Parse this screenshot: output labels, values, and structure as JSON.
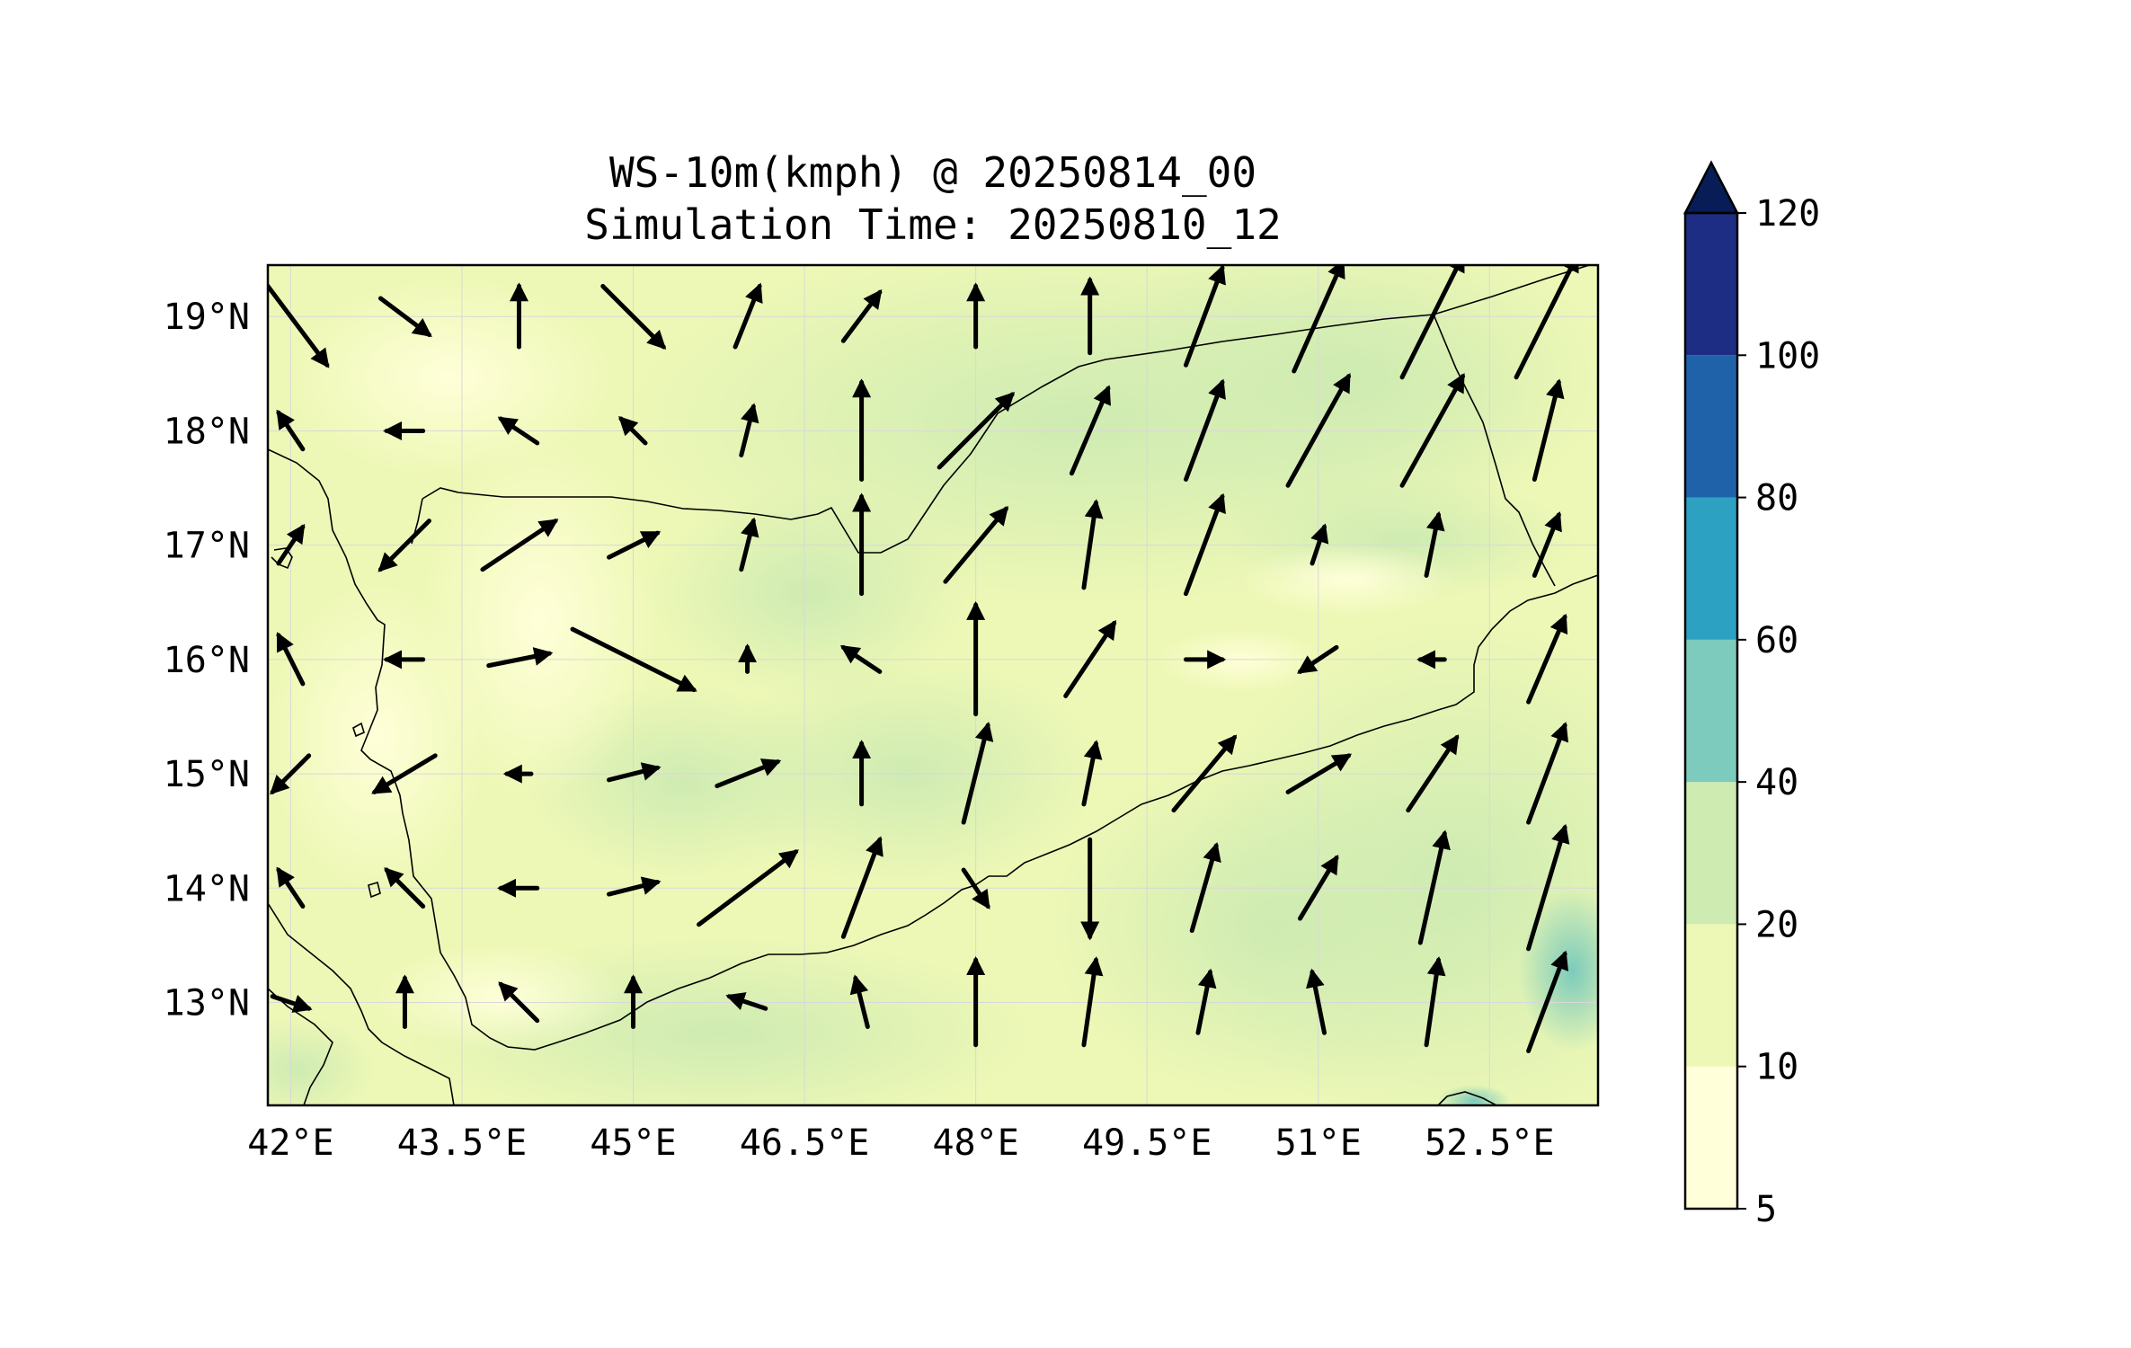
{
  "title": {
    "line1": "WS-10m(kmph) @ 20250814_00",
    "line2": "Simulation Time: 20250810_12"
  },
  "map": {
    "extent_lon": [
      41.8,
      53.45
    ],
    "extent_lat": [
      12.1,
      19.45
    ],
    "x_ticks": [
      {
        "lon": 42.0,
        "label": "42°E"
      },
      {
        "lon": 43.5,
        "label": "43.5°E"
      },
      {
        "lon": 45.0,
        "label": "45°E"
      },
      {
        "lon": 46.5,
        "label": "46.5°E"
      },
      {
        "lon": 48.0,
        "label": "48°E"
      },
      {
        "lon": 49.5,
        "label": "49.5°E"
      },
      {
        "lon": 51.0,
        "label": "51°E"
      },
      {
        "lon": 52.5,
        "label": "52.5°E"
      }
    ],
    "y_ticks": [
      {
        "lat": 19,
        "label": "19°N"
      },
      {
        "lat": 18,
        "label": "18°N"
      },
      {
        "lat": 17,
        "label": "17°N"
      },
      {
        "lat": 16,
        "label": "16°N"
      },
      {
        "lat": 15,
        "label": "15°N"
      },
      {
        "lat": 14,
        "label": "14°N"
      },
      {
        "lat": 13,
        "label": "13°N"
      }
    ],
    "gridlines": true
  },
  "colorbar": {
    "levels": [
      5,
      10,
      20,
      40,
      60,
      80,
      100,
      120
    ],
    "labels": [
      "5",
      "10",
      "20",
      "40",
      "60",
      "80",
      "100",
      "120"
    ],
    "colors": [
      "#ffffd9",
      "#eef8b6",
      "#ceebb2",
      "#7ccbbc",
      "#2ca1c2",
      "#2062a9",
      "#1d2d83"
    ],
    "extend_color": "#081d58",
    "extend": "max"
  },
  "chart_data": {
    "type": "heatmap",
    "variable": "WS-10m(kmph)",
    "valid_time": "20250814_00",
    "simulation_time": "20250810_12",
    "wind_vectors_uv": [
      [
        42.0,
        19.0,
        6,
        -8
      ],
      [
        43.0,
        19.0,
        4,
        -3
      ],
      [
        44.0,
        19.0,
        0,
        5
      ],
      [
        45.0,
        19.0,
        5,
        -5
      ],
      [
        46.0,
        19.0,
        2,
        5
      ],
      [
        47.0,
        19.0,
        3,
        4
      ],
      [
        48.0,
        19.0,
        0,
        5
      ],
      [
        49.0,
        19.0,
        0,
        6
      ],
      [
        50.0,
        19.0,
        3,
        8
      ],
      [
        51.0,
        19.0,
        4,
        9
      ],
      [
        52.0,
        19.0,
        5,
        10
      ],
      [
        53.0,
        19.0,
        5,
        10
      ],
      [
        42.0,
        18.0,
        -2,
        3
      ],
      [
        43.0,
        18.0,
        -3,
        0
      ],
      [
        44.0,
        18.0,
        -3,
        2
      ],
      [
        45.0,
        18.0,
        -2,
        2
      ],
      [
        46.0,
        18.0,
        1,
        4
      ],
      [
        47.0,
        18.0,
        0,
        8
      ],
      [
        48.0,
        18.0,
        6,
        6
      ],
      [
        49.0,
        18.0,
        3,
        7
      ],
      [
        50.0,
        18.0,
        3,
        8
      ],
      [
        51.0,
        18.0,
        5,
        9
      ],
      [
        52.0,
        18.0,
        5,
        9
      ],
      [
        53.0,
        18.0,
        2,
        8
      ],
      [
        42.0,
        17.0,
        2,
        3
      ],
      [
        43.0,
        17.0,
        -4,
        -4
      ],
      [
        44.0,
        17.0,
        6,
        4
      ],
      [
        45.0,
        17.0,
        4,
        2
      ],
      [
        46.0,
        17.0,
        1,
        4
      ],
      [
        47.0,
        17.0,
        0,
        8
      ],
      [
        48.0,
        17.0,
        5,
        6
      ],
      [
        49.0,
        17.0,
        1,
        7
      ],
      [
        50.0,
        17.0,
        3,
        8
      ],
      [
        51.0,
        17.0,
        1,
        3
      ],
      [
        52.0,
        17.0,
        1,
        5
      ],
      [
        53.0,
        17.0,
        2,
        5
      ],
      [
        42.0,
        16.0,
        -2,
        4
      ],
      [
        43.0,
        16.0,
        -3,
        0
      ],
      [
        44.0,
        16.0,
        5,
        1
      ],
      [
        45.0,
        16.0,
        10,
        -5
      ],
      [
        46.0,
        16.0,
        0,
        2
      ],
      [
        47.0,
        16.0,
        -3,
        2
      ],
      [
        48.0,
        16.0,
        0,
        9
      ],
      [
        49.0,
        16.0,
        4,
        6
      ],
      [
        50.0,
        16.0,
        3,
        0
      ],
      [
        51.0,
        16.0,
        -3,
        -2
      ],
      [
        52.0,
        16.0,
        -2,
        0
      ],
      [
        53.0,
        16.0,
        3,
        7
      ],
      [
        42.0,
        15.0,
        -3,
        -3
      ],
      [
        43.0,
        15.0,
        -5,
        -3
      ],
      [
        44.0,
        15.0,
        -2,
        0
      ],
      [
        45.0,
        15.0,
        4,
        1
      ],
      [
        46.0,
        15.0,
        5,
        2
      ],
      [
        47.0,
        15.0,
        0,
        5
      ],
      [
        48.0,
        15.0,
        2,
        8
      ],
      [
        49.0,
        15.0,
        1,
        5
      ],
      [
        50.0,
        15.0,
        5,
        6
      ],
      [
        51.0,
        15.0,
        5,
        3
      ],
      [
        52.0,
        15.0,
        4,
        6
      ],
      [
        53.0,
        15.0,
        3,
        8
      ],
      [
        42.0,
        14.0,
        -2,
        3
      ],
      [
        43.0,
        14.0,
        -3,
        3
      ],
      [
        44.0,
        14.0,
        -3,
        0
      ],
      [
        45.0,
        14.0,
        4,
        1
      ],
      [
        46.0,
        14.0,
        8,
        6
      ],
      [
        47.0,
        14.0,
        3,
        8
      ],
      [
        48.0,
        14.0,
        2,
        -3
      ],
      [
        49.0,
        14.0,
        0,
        -8
      ],
      [
        50.0,
        14.0,
        2,
        7
      ],
      [
        51.0,
        14.0,
        3,
        5
      ],
      [
        52.0,
        14.0,
        2,
        9
      ],
      [
        53.0,
        14.0,
        3,
        10
      ],
      [
        42.0,
        13.0,
        3,
        -1
      ],
      [
        43.0,
        13.0,
        0,
        4
      ],
      [
        44.0,
        13.0,
        -3,
        3
      ],
      [
        45.0,
        13.0,
        0,
        4
      ],
      [
        46.0,
        13.0,
        -3,
        1
      ],
      [
        47.0,
        13.0,
        -1,
        4
      ],
      [
        48.0,
        13.0,
        0,
        7
      ],
      [
        49.0,
        13.0,
        1,
        7
      ],
      [
        50.0,
        13.0,
        1,
        5
      ],
      [
        51.0,
        13.0,
        -1,
        5
      ],
      [
        52.0,
        13.0,
        1,
        7
      ],
      [
        53.0,
        13.0,
        3,
        8
      ]
    ]
  }
}
